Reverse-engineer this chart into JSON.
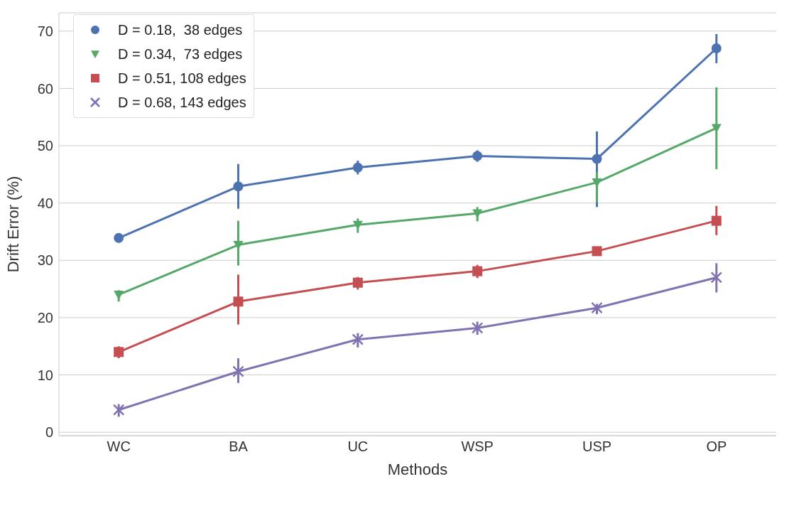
{
  "chart_data": {
    "type": "line",
    "xlabel": "Methods",
    "ylabel": "Drift Error (%)",
    "categories": [
      "WC",
      "BA",
      "UC",
      "WSP",
      "USP",
      "OP"
    ],
    "series": [
      {
        "name": "D = 0.18,  38 edges",
        "color": "#4c72b0",
        "marker": "circle",
        "values": [
          33.9,
          42.9,
          46.2,
          48.2,
          47.7,
          67.0
        ],
        "errors": [
          [
            33.1,
            34.7
          ],
          [
            39.0,
            46.8
          ],
          [
            45.0,
            47.4
          ],
          [
            47.2,
            49.2
          ],
          [
            39.3,
            52.5
          ],
          [
            64.4,
            69.5
          ]
        ]
      },
      {
        "name": "D = 0.34,  73 edges",
        "color": "#55a868",
        "marker": "triangle",
        "values": [
          24.0,
          32.7,
          36.2,
          38.2,
          43.6,
          53.1
        ],
        "errors": [
          [
            22.8,
            24.8
          ],
          [
            29.1,
            36.9
          ],
          [
            34.8,
            37.3
          ],
          [
            36.8,
            39.3
          ],
          [
            40.1,
            45.4
          ],
          [
            45.9,
            60.2
          ]
        ]
      },
      {
        "name": "D = 0.51, 108 edges",
        "color": "#c44e52",
        "marker": "square",
        "values": [
          14.0,
          22.8,
          26.1,
          28.1,
          31.6,
          36.9
        ],
        "errors": [
          [
            12.9,
            15.0
          ],
          [
            18.8,
            27.5
          ],
          [
            24.9,
            27.1
          ],
          [
            26.9,
            29.2
          ],
          [
            30.8,
            32.4
          ],
          [
            34.4,
            39.5
          ]
        ]
      },
      {
        "name": "D = 0.68, 143 edges",
        "color": "#8172b2",
        "marker": "cross",
        "values": [
          3.9,
          10.6,
          16.2,
          18.2,
          21.7,
          27.0
        ],
        "errors": [
          [
            2.7,
            4.9
          ],
          [
            8.6,
            12.9
          ],
          [
            14.8,
            17.3
          ],
          [
            17.0,
            19.3
          ],
          [
            20.6,
            22.4
          ],
          [
            24.4,
            29.5
          ]
        ]
      }
    ],
    "ylim": [
      -0.6,
      73.2
    ],
    "yticks": [
      0,
      10,
      20,
      30,
      40,
      50,
      60,
      70
    ],
    "grid": "y",
    "legend": "top left",
    "line_style": "solid"
  }
}
